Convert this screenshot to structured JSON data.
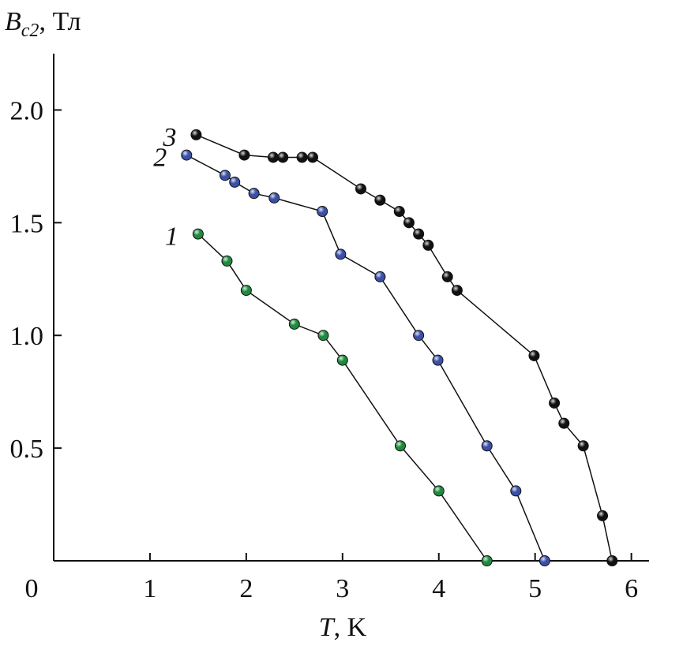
{
  "chart_data": {
    "type": "line",
    "ylabel": {
      "symbol": "B",
      "subscript": "c2",
      "unit": ", Тл"
    },
    "xlabel": {
      "symbol": "T",
      "unit": ", K"
    },
    "xlim": [
      0,
      6.2
    ],
    "ylim": [
      0,
      2.25
    ],
    "xticks": [
      0,
      1,
      2,
      3,
      4,
      5,
      6
    ],
    "yticks": [
      {
        "value": 0.5,
        "label": "0.5"
      },
      {
        "value": 1.0,
        "label": "1.0"
      },
      {
        "value": 1.5,
        "label": "1.5"
      },
      {
        "value": 2.0,
        "label": "2.0"
      }
    ],
    "series": [
      {
        "name": "1",
        "color": "#1e8a3e",
        "x": [
          1.5,
          1.8,
          2.0,
          2.5,
          2.8,
          3.0,
          3.6,
          4.0,
          4.5
        ],
        "values": [
          1.45,
          1.33,
          1.2,
          1.05,
          1.0,
          0.89,
          0.51,
          0.31,
          0.0
        ]
      },
      {
        "name": "2",
        "color": "#3a50a8",
        "x": [
          1.38,
          1.78,
          1.88,
          2.08,
          2.29,
          2.79,
          2.98,
          3.39,
          3.79,
          3.99,
          4.5,
          4.8,
          5.1
        ],
        "values": [
          1.8,
          1.71,
          1.68,
          1.63,
          1.61,
          1.55,
          1.36,
          1.26,
          1.0,
          0.89,
          0.51,
          0.31,
          0.0
        ]
      },
      {
        "name": "3",
        "color": "#111111",
        "x": [
          1.48,
          1.98,
          2.28,
          2.38,
          2.58,
          2.69,
          3.19,
          3.39,
          3.59,
          3.69,
          3.79,
          3.89,
          4.09,
          4.19,
          4.99,
          5.2,
          5.3,
          5.5,
          5.7,
          5.8
        ],
        "values": [
          1.89,
          1.8,
          1.79,
          1.79,
          1.79,
          1.79,
          1.65,
          1.6,
          1.55,
          1.5,
          1.45,
          1.4,
          1.26,
          1.2,
          0.91,
          0.7,
          0.61,
          0.51,
          0.2,
          0.0
        ]
      }
    ]
  }
}
